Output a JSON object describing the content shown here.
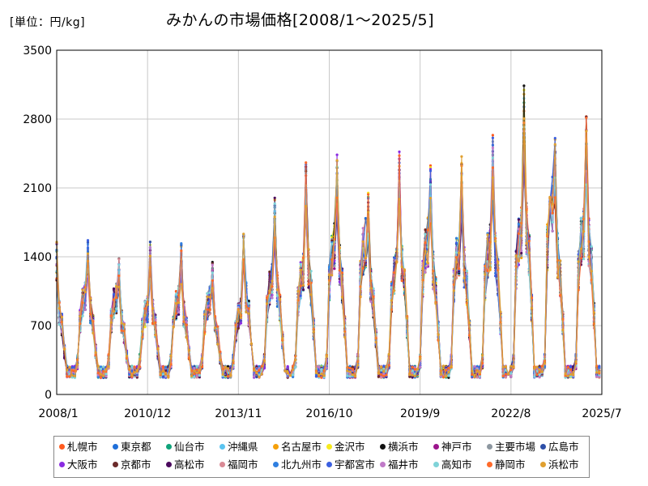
{
  "chart_data": {
    "type": "line",
    "title": "みかんの市場価格[2008/1～2025/5]",
    "unit_label": "[単位：円/kg]",
    "x_tick_labels": [
      "2008/1",
      "2010/12",
      "2013/11",
      "2016/10",
      "2019/9",
      "2022/8",
      "2025/7"
    ],
    "y_tick_labels": [
      "0",
      "700",
      "1400",
      "2100",
      "2800",
      "3500"
    ],
    "ylim": [
      0,
      3500
    ],
    "grid": true,
    "legend_position": "bottom",
    "series": [
      {
        "name": "札幌市",
        "color": "#ff5a1e"
      },
      {
        "name": "東京都",
        "color": "#1f6fd9"
      },
      {
        "name": "仙台市",
        "color": "#10a37a"
      },
      {
        "name": "沖縄県",
        "color": "#5bc4f0"
      },
      {
        "name": "名古屋市",
        "color": "#f5a00a"
      },
      {
        "name": "金沢市",
        "color": "#f7ea1e"
      },
      {
        "name": "横浜市",
        "color": "#111111"
      },
      {
        "name": "神戸市",
        "color": "#9b158c"
      },
      {
        "name": "主要市場",
        "color": "#8d97a0"
      },
      {
        "name": "広島市",
        "color": "#2e4fa8"
      },
      {
        "name": "大阪市",
        "color": "#8a2be2"
      },
      {
        "name": "京都市",
        "color": "#6b2a2a"
      },
      {
        "name": "高松市",
        "color": "#4b0a5e"
      },
      {
        "name": "福岡市",
        "color": "#d98a95"
      },
      {
        "name": "北九州市",
        "color": "#2f7fe0"
      },
      {
        "name": "宇都宮市",
        "color": "#3b5fe0"
      },
      {
        "name": "福井市",
        "color": "#c07ac8"
      },
      {
        "name": "高知市",
        "color": "#7fd3d8"
      },
      {
        "name": "静岡市",
        "color": "#ff6a2a"
      },
      {
        "name": "浜松市",
        "color": "#e0a030"
      }
    ],
    "peaks_approx": {
      "2008": 1580,
      "2009": 1590,
      "2010": 1400,
      "2011": 1560,
      "2012": 1540,
      "2013": 1360,
      "2014": 1840,
      "2015": 2000,
      "2016": 2420,
      "2017": 2490,
      "2018": 2080,
      "2019": 2500,
      "2020": 2340,
      "2021": 2430,
      "2022": 2660,
      "2023": 3180,
      "2024": 2650,
      "2025": 2920
    },
    "note_on_exact_values": ""
  }
}
